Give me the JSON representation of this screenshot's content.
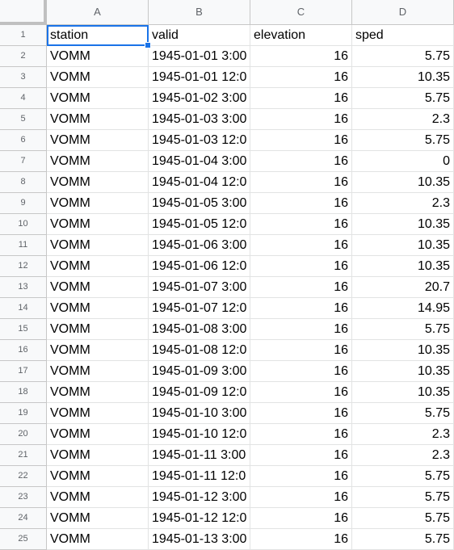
{
  "columns": [
    "A",
    "B",
    "C",
    "D"
  ],
  "header_row": {
    "num": "1",
    "station": "station",
    "valid": "valid",
    "elevation": "elevation",
    "sped": "sped"
  },
  "rows": [
    {
      "num": "2",
      "station": "VOMM",
      "valid": "1945-01-01 3:00",
      "elevation": "16",
      "sped": "5.75"
    },
    {
      "num": "3",
      "station": "VOMM",
      "valid": "1945-01-01 12:0",
      "elevation": "16",
      "sped": "10.35"
    },
    {
      "num": "4",
      "station": "VOMM",
      "valid": "1945-01-02 3:00",
      "elevation": "16",
      "sped": "5.75"
    },
    {
      "num": "5",
      "station": "VOMM",
      "valid": "1945-01-03 3:00",
      "elevation": "16",
      "sped": "2.3"
    },
    {
      "num": "6",
      "station": "VOMM",
      "valid": "1945-01-03 12:0",
      "elevation": "16",
      "sped": "5.75"
    },
    {
      "num": "7",
      "station": "VOMM",
      "valid": "1945-01-04 3:00",
      "elevation": "16",
      "sped": "0"
    },
    {
      "num": "8",
      "station": "VOMM",
      "valid": "1945-01-04 12:0",
      "elevation": "16",
      "sped": "10.35"
    },
    {
      "num": "9",
      "station": "VOMM",
      "valid": "1945-01-05 3:00",
      "elevation": "16",
      "sped": "2.3"
    },
    {
      "num": "10",
      "station": "VOMM",
      "valid": "1945-01-05 12:0",
      "elevation": "16",
      "sped": "10.35"
    },
    {
      "num": "11",
      "station": "VOMM",
      "valid": "1945-01-06 3:00",
      "elevation": "16",
      "sped": "10.35"
    },
    {
      "num": "12",
      "station": "VOMM",
      "valid": "1945-01-06 12:0",
      "elevation": "16",
      "sped": "10.35"
    },
    {
      "num": "13",
      "station": "VOMM",
      "valid": "1945-01-07 3:00",
      "elevation": "16",
      "sped": "20.7"
    },
    {
      "num": "14",
      "station": "VOMM",
      "valid": "1945-01-07 12:0",
      "elevation": "16",
      "sped": "14.95"
    },
    {
      "num": "15",
      "station": "VOMM",
      "valid": "1945-01-08 3:00",
      "elevation": "16",
      "sped": "5.75"
    },
    {
      "num": "16",
      "station": "VOMM",
      "valid": "1945-01-08 12:0",
      "elevation": "16",
      "sped": "10.35"
    },
    {
      "num": "17",
      "station": "VOMM",
      "valid": "1945-01-09 3:00",
      "elevation": "16",
      "sped": "10.35"
    },
    {
      "num": "18",
      "station": "VOMM",
      "valid": "1945-01-09 12:0",
      "elevation": "16",
      "sped": "10.35"
    },
    {
      "num": "19",
      "station": "VOMM",
      "valid": "1945-01-10 3:00",
      "elevation": "16",
      "sped": "5.75"
    },
    {
      "num": "20",
      "station": "VOMM",
      "valid": "1945-01-10 12:0",
      "elevation": "16",
      "sped": "2.3"
    },
    {
      "num": "21",
      "station": "VOMM",
      "valid": "1945-01-11 3:00",
      "elevation": "16",
      "sped": "2.3"
    },
    {
      "num": "22",
      "station": "VOMM",
      "valid": "1945-01-11 12:0",
      "elevation": "16",
      "sped": "5.75"
    },
    {
      "num": "23",
      "station": "VOMM",
      "valid": "1945-01-12 3:00",
      "elevation": "16",
      "sped": "5.75"
    },
    {
      "num": "24",
      "station": "VOMM",
      "valid": "1945-01-12 12:0",
      "elevation": "16",
      "sped": "5.75"
    },
    {
      "num": "25",
      "station": "VOMM",
      "valid": "1945-01-13 3:00",
      "elevation": "16",
      "sped": "5.75"
    }
  ]
}
